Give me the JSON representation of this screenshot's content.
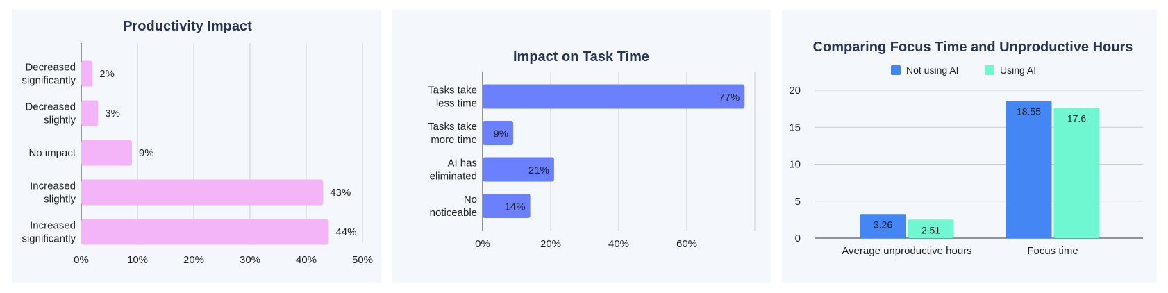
{
  "chart_data": [
    {
      "type": "bar",
      "orientation": "horizontal",
      "title": "Productivity Impact",
      "categories": [
        [
          "Decreased",
          "significantly"
        ],
        [
          "Decreased",
          "slightly"
        ],
        [
          "No impact"
        ],
        [
          "Increased",
          "slightly"
        ],
        [
          "Increased",
          "significantly"
        ]
      ],
      "values": [
        2,
        3,
        9,
        43,
        44
      ],
      "value_labels": [
        "2%",
        "3%",
        "9%",
        "43%",
        "44%"
      ],
      "xticks": [
        "0%",
        "10%",
        "20%",
        "30%",
        "40%",
        "50%"
      ],
      "xlim": [
        0,
        50
      ],
      "grid": true,
      "colors": {
        "bar": "#f3b5f8"
      }
    },
    {
      "type": "bar",
      "orientation": "horizontal",
      "title": "Impact on Task Time",
      "categories": [
        [
          "Tasks take",
          "less time"
        ],
        [
          "Tasks take",
          "more time"
        ],
        [
          "AI has",
          "eliminated"
        ],
        [
          "No",
          "noticeable"
        ]
      ],
      "values": [
        77,
        9,
        21,
        14
      ],
      "value_labels": [
        "77%",
        "9%",
        "21%",
        "14%"
      ],
      "xticks": [
        "0%",
        "20%",
        "40%",
        "60%"
      ],
      "xlim": [
        0,
        80
      ],
      "grid": true,
      "colors": {
        "bar": "#6b80ff"
      }
    },
    {
      "type": "bar",
      "orientation": "vertical",
      "title": "Comparing Focus Time and Unproductive Hours",
      "categories": [
        "Average unproductive hours",
        "Focus time"
      ],
      "series": [
        {
          "name": "Not using AI",
          "values": [
            3.26,
            18.55
          ],
          "color": "#4486f4"
        },
        {
          "name": "Using AI",
          "values": [
            2.51,
            17.6
          ],
          "color": "#6ff7d2"
        }
      ],
      "value_labels": [
        [
          "3.26",
          "18.55"
        ],
        [
          "2.51",
          "17.6"
        ]
      ],
      "yticks": [
        "0",
        "5",
        "10",
        "15",
        "20"
      ],
      "ylim": [
        0,
        20
      ],
      "grid": true,
      "legend": "top"
    }
  ]
}
